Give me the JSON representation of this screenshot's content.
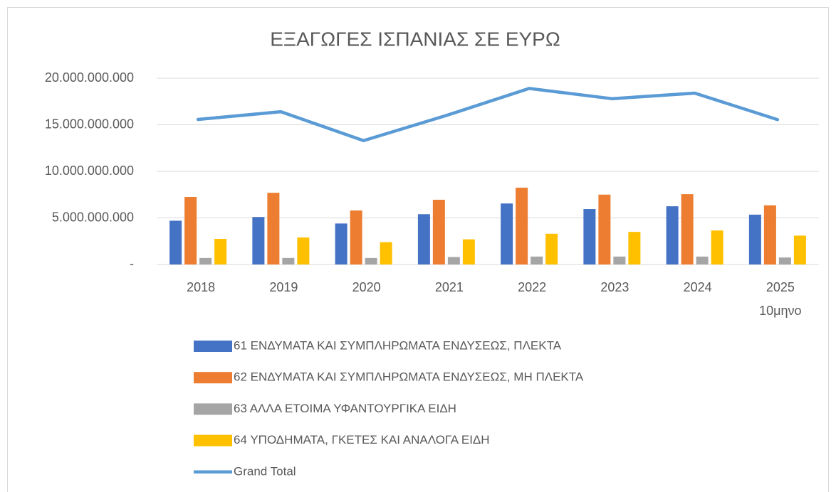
{
  "chart_data": {
    "type": "bar",
    "title": "ΕΞΑΓΩΓΕΣ ΙΣΠΑΝΙΑΣ ΣΕ ΕΥΡΩ",
    "categories": [
      "2018",
      "2019",
      "2020",
      "2021",
      "2022",
      "2023",
      "2024",
      "2025\n10μηνο"
    ],
    "series": [
      {
        "name": "61 ΕΝΔΥΜΑΤΑ ΚΑΙ ΣΥΜΠΛΗΡΩΜΑΤΑ ΕΝΔΥΣΕΩΣ, ΠΛΕΚΤΑ",
        "color": "#4472c4",
        "values": [
          4700000000,
          5100000000,
          4400000000,
          5400000000,
          6550000000,
          5950000000,
          6250000000,
          5350000000
        ]
      },
      {
        "name": "62 ΕΝΔΥΜΑΤΑ ΚΑΙ ΣΥΜΠΛΗΡΩΜΑΤΑ ΕΝΔΥΣΕΩΣ, ΜΗ ΠΛΕΚΤΑ",
        "color": "#ed7d31",
        "values": [
          7250000000,
          7700000000,
          5800000000,
          6950000000,
          8250000000,
          7500000000,
          7550000000,
          6350000000
        ]
      },
      {
        "name": "63 ΑΛΛΑ ΕΤΟΙΜΑ ΥΦΑΝΤΟΥΡΓΙΚΑ ΕΙΔΗ",
        "color": "#a5a5a5",
        "values": [
          700000000,
          700000000,
          700000000,
          800000000,
          850000000,
          850000000,
          850000000,
          750000000
        ]
      },
      {
        "name": "64 ΥΠΟΔΗΜΑΤΑ, ΓΚΕΤΕΣ ΚΑΙ ΑΝΑΛΟΓΑ ΕΙΔΗ",
        "color": "#ffc000",
        "values": [
          2750000000,
          2900000000,
          2400000000,
          2700000000,
          3300000000,
          3500000000,
          3650000000,
          3100000000
        ]
      },
      {
        "name": "Grand Total",
        "color": "#5b9bd5",
        "type": "line",
        "values": [
          15570000000,
          16400000000,
          13300000000,
          16000000000,
          18900000000,
          17800000000,
          18400000000,
          15550000000
        ]
      }
    ],
    "ylim": [
      0,
      20000000000
    ],
    "yticks": [
      {
        "value": 0,
        "label": "-"
      },
      {
        "value": 5000000000,
        "label": "5.000.000.000"
      },
      {
        "value": 10000000000,
        "label": "10.000.000.000"
      },
      {
        "value": 15000000000,
        "label": "15.000.000.000"
      },
      {
        "value": 20000000000,
        "label": "20.000.000.000"
      }
    ],
    "grid": true,
    "legend": "bottom"
  }
}
